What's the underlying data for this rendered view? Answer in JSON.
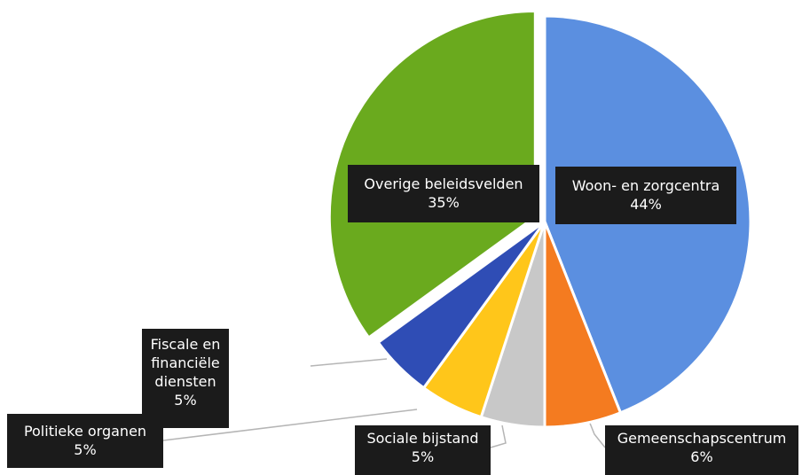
{
  "chart_data": {
    "type": "pie",
    "title": "",
    "slices": [
      {
        "label": "Woon- en zorgcentra",
        "value": 44,
        "percent_label": "44%",
        "color": "#5b8fe0"
      },
      {
        "label": "Gemeenschapscentrum",
        "value": 6,
        "percent_label": "6%",
        "color": "#f47b20"
      },
      {
        "label": "Sociale bijstand",
        "value": 5,
        "percent_label": "5%",
        "color": "#c8c8c8"
      },
      {
        "label": "Politieke organen",
        "value": 5,
        "percent_label": "5%",
        "color": "#ffc61a"
      },
      {
        "label": "Fiscale en financiële diensten",
        "value": 5,
        "percent_label": "5%",
        "color": "#2f4db5"
      },
      {
        "label": "Overige beleidsvelden",
        "value": 35,
        "percent_label": "35%",
        "color": "#6aaa1e"
      }
    ],
    "fiscale_lines": [
      "Fiscale en",
      "financiële",
      "diensten"
    ],
    "politieke_line": "Politieke organen",
    "legend": "none",
    "data_labels": "callout-boxes"
  }
}
